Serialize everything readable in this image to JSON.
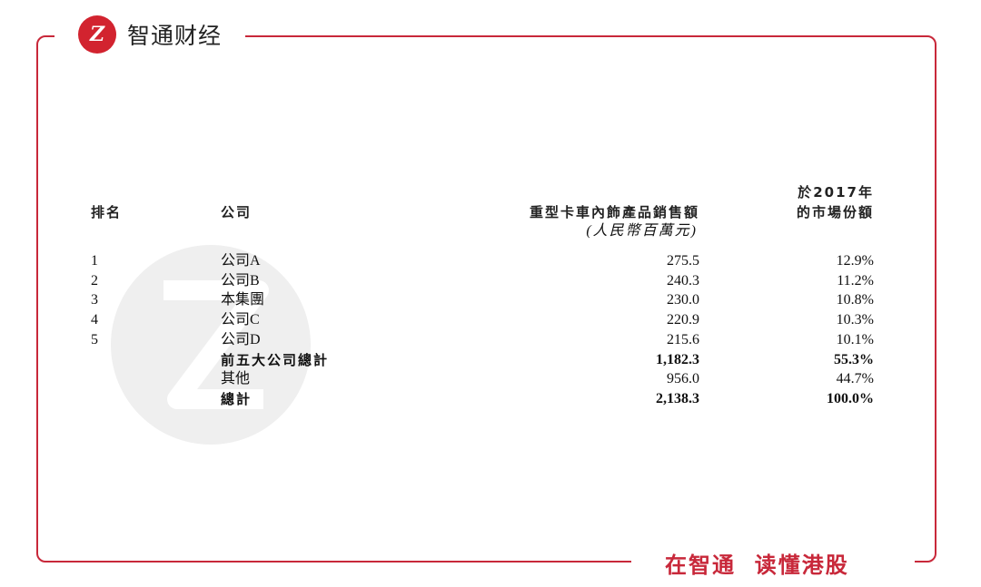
{
  "brand": {
    "logo_text": "智通财经",
    "logo_mark": "Z",
    "slogan": "在智通  读懂港股",
    "accent": "#c8283a"
  },
  "watermark": {
    "text": "智通财经"
  },
  "table": {
    "headers": {
      "rank": "排名",
      "company": "公司",
      "sales": "重型卡車內飾產品銷售額",
      "sales_unit": "(人民幣百萬元)",
      "share_line1": "於2017年",
      "share_line2": "的市場份額"
    },
    "rows": [
      {
        "rank": "1",
        "company": "公司A",
        "sales": "275.5",
        "share": "12.9%"
      },
      {
        "rank": "2",
        "company": "公司B",
        "sales": "240.3",
        "share": "11.2%"
      },
      {
        "rank": "3",
        "company": "本集團",
        "sales": "230.0",
        "share": "10.8%"
      },
      {
        "rank": "4",
        "company": "公司C",
        "sales": "220.9",
        "share": "10.3%"
      },
      {
        "rank": "5",
        "company": "公司D",
        "sales": "215.6",
        "share": "10.1%"
      },
      {
        "rank": "",
        "company": "前五大公司總計",
        "sales": "1,182.3",
        "share": "55.3%",
        "bold": true
      },
      {
        "rank": "",
        "company": "其他",
        "sales": "956.0",
        "share": "44.7%"
      },
      {
        "rank": "",
        "company": "總計",
        "sales": "2,138.3",
        "share": "100.0%",
        "bold": true
      }
    ]
  }
}
